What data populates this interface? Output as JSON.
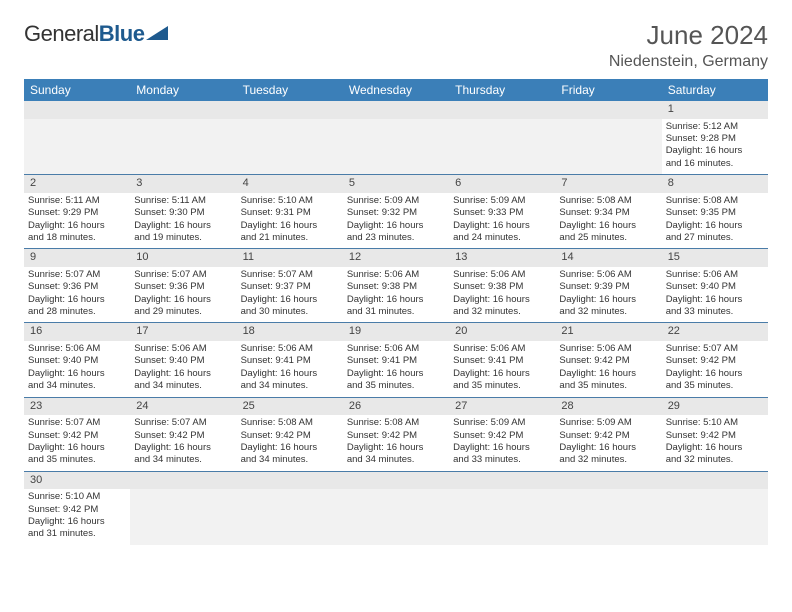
{
  "brand": {
    "part1": "General",
    "part2": "Blue"
  },
  "title": "June 2024",
  "location": "Niedenstein, Germany",
  "colors": {
    "header_bg": "#3b7fb8",
    "header_text": "#ffffff",
    "daynum_bg": "#e8e8e8",
    "border": "#4a7ca8",
    "logo_blue": "#1e5a8e"
  },
  "day_headers": [
    "Sunday",
    "Monday",
    "Tuesday",
    "Wednesday",
    "Thursday",
    "Friday",
    "Saturday"
  ],
  "weeks": [
    [
      null,
      null,
      null,
      null,
      null,
      null,
      {
        "n": "1",
        "sr": "Sunrise: 5:12 AM",
        "ss": "Sunset: 9:28 PM",
        "dl1": "Daylight: 16 hours",
        "dl2": "and 16 minutes."
      }
    ],
    [
      {
        "n": "2",
        "sr": "Sunrise: 5:11 AM",
        "ss": "Sunset: 9:29 PM",
        "dl1": "Daylight: 16 hours",
        "dl2": "and 18 minutes."
      },
      {
        "n": "3",
        "sr": "Sunrise: 5:11 AM",
        "ss": "Sunset: 9:30 PM",
        "dl1": "Daylight: 16 hours",
        "dl2": "and 19 minutes."
      },
      {
        "n": "4",
        "sr": "Sunrise: 5:10 AM",
        "ss": "Sunset: 9:31 PM",
        "dl1": "Daylight: 16 hours",
        "dl2": "and 21 minutes."
      },
      {
        "n": "5",
        "sr": "Sunrise: 5:09 AM",
        "ss": "Sunset: 9:32 PM",
        "dl1": "Daylight: 16 hours",
        "dl2": "and 23 minutes."
      },
      {
        "n": "6",
        "sr": "Sunrise: 5:09 AM",
        "ss": "Sunset: 9:33 PM",
        "dl1": "Daylight: 16 hours",
        "dl2": "and 24 minutes."
      },
      {
        "n": "7",
        "sr": "Sunrise: 5:08 AM",
        "ss": "Sunset: 9:34 PM",
        "dl1": "Daylight: 16 hours",
        "dl2": "and 25 minutes."
      },
      {
        "n": "8",
        "sr": "Sunrise: 5:08 AM",
        "ss": "Sunset: 9:35 PM",
        "dl1": "Daylight: 16 hours",
        "dl2": "and 27 minutes."
      }
    ],
    [
      {
        "n": "9",
        "sr": "Sunrise: 5:07 AM",
        "ss": "Sunset: 9:36 PM",
        "dl1": "Daylight: 16 hours",
        "dl2": "and 28 minutes."
      },
      {
        "n": "10",
        "sr": "Sunrise: 5:07 AM",
        "ss": "Sunset: 9:36 PM",
        "dl1": "Daylight: 16 hours",
        "dl2": "and 29 minutes."
      },
      {
        "n": "11",
        "sr": "Sunrise: 5:07 AM",
        "ss": "Sunset: 9:37 PM",
        "dl1": "Daylight: 16 hours",
        "dl2": "and 30 minutes."
      },
      {
        "n": "12",
        "sr": "Sunrise: 5:06 AM",
        "ss": "Sunset: 9:38 PM",
        "dl1": "Daylight: 16 hours",
        "dl2": "and 31 minutes."
      },
      {
        "n": "13",
        "sr": "Sunrise: 5:06 AM",
        "ss": "Sunset: 9:38 PM",
        "dl1": "Daylight: 16 hours",
        "dl2": "and 32 minutes."
      },
      {
        "n": "14",
        "sr": "Sunrise: 5:06 AM",
        "ss": "Sunset: 9:39 PM",
        "dl1": "Daylight: 16 hours",
        "dl2": "and 32 minutes."
      },
      {
        "n": "15",
        "sr": "Sunrise: 5:06 AM",
        "ss": "Sunset: 9:40 PM",
        "dl1": "Daylight: 16 hours",
        "dl2": "and 33 minutes."
      }
    ],
    [
      {
        "n": "16",
        "sr": "Sunrise: 5:06 AM",
        "ss": "Sunset: 9:40 PM",
        "dl1": "Daylight: 16 hours",
        "dl2": "and 34 minutes."
      },
      {
        "n": "17",
        "sr": "Sunrise: 5:06 AM",
        "ss": "Sunset: 9:40 PM",
        "dl1": "Daylight: 16 hours",
        "dl2": "and 34 minutes."
      },
      {
        "n": "18",
        "sr": "Sunrise: 5:06 AM",
        "ss": "Sunset: 9:41 PM",
        "dl1": "Daylight: 16 hours",
        "dl2": "and 34 minutes."
      },
      {
        "n": "19",
        "sr": "Sunrise: 5:06 AM",
        "ss": "Sunset: 9:41 PM",
        "dl1": "Daylight: 16 hours",
        "dl2": "and 35 minutes."
      },
      {
        "n": "20",
        "sr": "Sunrise: 5:06 AM",
        "ss": "Sunset: 9:41 PM",
        "dl1": "Daylight: 16 hours",
        "dl2": "and 35 minutes."
      },
      {
        "n": "21",
        "sr": "Sunrise: 5:06 AM",
        "ss": "Sunset: 9:42 PM",
        "dl1": "Daylight: 16 hours",
        "dl2": "and 35 minutes."
      },
      {
        "n": "22",
        "sr": "Sunrise: 5:07 AM",
        "ss": "Sunset: 9:42 PM",
        "dl1": "Daylight: 16 hours",
        "dl2": "and 35 minutes."
      }
    ],
    [
      {
        "n": "23",
        "sr": "Sunrise: 5:07 AM",
        "ss": "Sunset: 9:42 PM",
        "dl1": "Daylight: 16 hours",
        "dl2": "and 35 minutes."
      },
      {
        "n": "24",
        "sr": "Sunrise: 5:07 AM",
        "ss": "Sunset: 9:42 PM",
        "dl1": "Daylight: 16 hours",
        "dl2": "and 34 minutes."
      },
      {
        "n": "25",
        "sr": "Sunrise: 5:08 AM",
        "ss": "Sunset: 9:42 PM",
        "dl1": "Daylight: 16 hours",
        "dl2": "and 34 minutes."
      },
      {
        "n": "26",
        "sr": "Sunrise: 5:08 AM",
        "ss": "Sunset: 9:42 PM",
        "dl1": "Daylight: 16 hours",
        "dl2": "and 34 minutes."
      },
      {
        "n": "27",
        "sr": "Sunrise: 5:09 AM",
        "ss": "Sunset: 9:42 PM",
        "dl1": "Daylight: 16 hours",
        "dl2": "and 33 minutes."
      },
      {
        "n": "28",
        "sr": "Sunrise: 5:09 AM",
        "ss": "Sunset: 9:42 PM",
        "dl1": "Daylight: 16 hours",
        "dl2": "and 32 minutes."
      },
      {
        "n": "29",
        "sr": "Sunrise: 5:10 AM",
        "ss": "Sunset: 9:42 PM",
        "dl1": "Daylight: 16 hours",
        "dl2": "and 32 minutes."
      }
    ],
    [
      {
        "n": "30",
        "sr": "Sunrise: 5:10 AM",
        "ss": "Sunset: 9:42 PM",
        "dl1": "Daylight: 16 hours",
        "dl2": "and 31 minutes."
      },
      null,
      null,
      null,
      null,
      null,
      null
    ]
  ]
}
